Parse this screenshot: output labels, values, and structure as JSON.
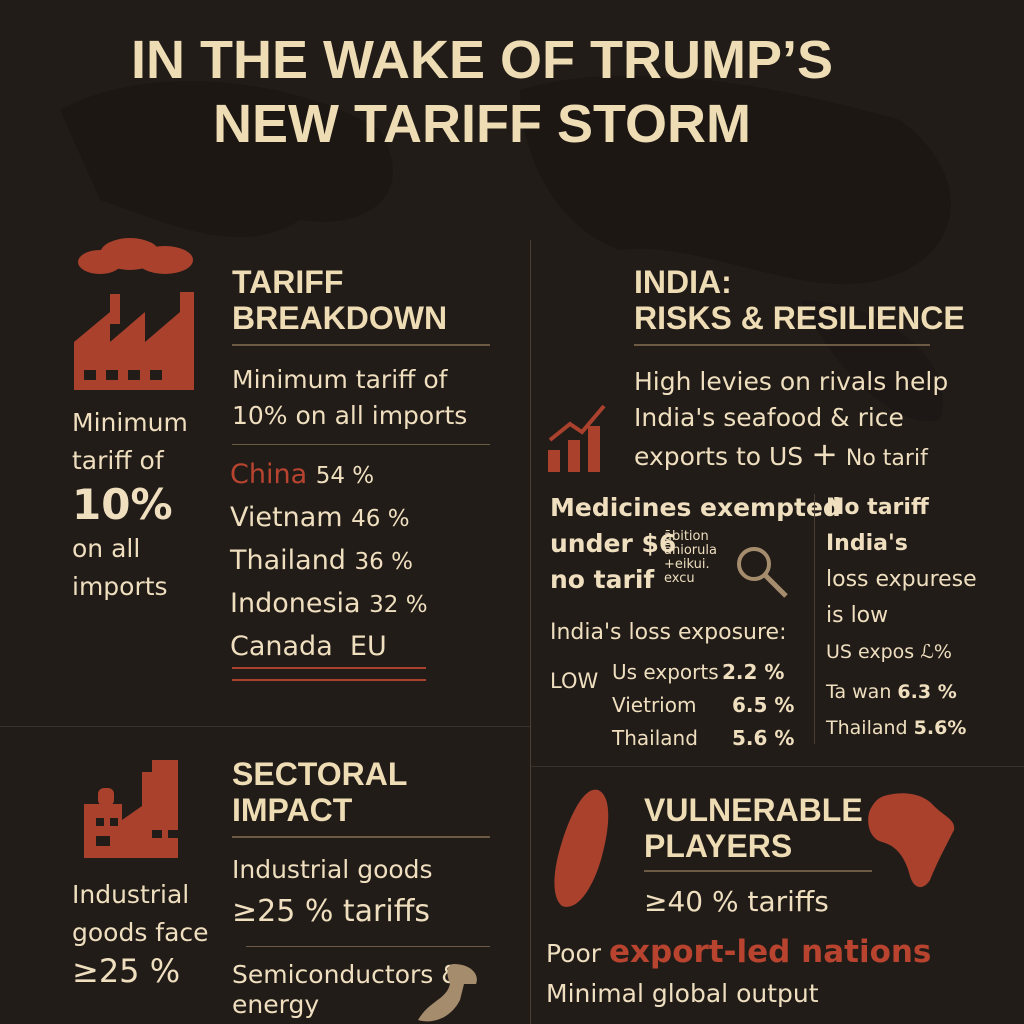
{
  "title": {
    "line1": "IN THE WAKE OF TRUMP’S",
    "line2": "NEW TARIFF STORM"
  },
  "colors": {
    "background": "#221c19",
    "text": "#efdfbf",
    "accent": "#b8442f"
  },
  "tariff": {
    "heading1": "TARIFF",
    "heading2": "BREAKDOWN",
    "side1": "Minimum",
    "side2": "tariff of",
    "side_big": "10%",
    "side3": "on all",
    "side4": "imports",
    "lead1": "Minimum tariff of",
    "lead2": "10% on all imports",
    "rows": [
      {
        "country": "China",
        "value": "54 %"
      },
      {
        "country": "Vietnam",
        "value": "46 %"
      },
      {
        "country": "Thailand",
        "value": "36 %"
      },
      {
        "country": "Indonesia",
        "value": "32 %"
      },
      {
        "country": "Canada",
        "value": "EU"
      }
    ]
  },
  "india": {
    "heading1": "INDIA:",
    "heading2": "RISKS & RESILIENCE",
    "lead1": "High levies on rivals help",
    "lead2": "India's seafood & rice",
    "lead3": "exports to US",
    "plus": "+",
    "lead4": "No tarif",
    "med1": "Medicines exempted",
    "med2": "under $6",
    "med3": "no tarif",
    "small1": "ābition",
    "small2": "āniorula",
    "small3": "+eikui.",
    "small4": "excu",
    "loss_label": "India's loss exposure:",
    "low": "LOW",
    "loss_rows": [
      {
        "label": "Us exports",
        "value": "2.2 %"
      },
      {
        "label": "Vietriom",
        "value": "6.5 %"
      },
      {
        "label": "Thailand",
        "value": "5.6 %"
      }
    ],
    "right1": "No tariff",
    "right2": "India's",
    "right3": "loss expurese",
    "right4": "is low",
    "right5": "US expos ℒ%",
    "right_rows": [
      {
        "label": "Ta wan",
        "value": "6.3 %"
      },
      {
        "label": "Thailand",
        "value": "5.6%"
      }
    ]
  },
  "sectoral": {
    "heading1": "SECTORAL",
    "heading2": "IMPACT",
    "side1": "Industrial",
    "side2": "goods face",
    "side3": "≥25 %",
    "lead1": "Industrial goods",
    "lead2": "≥25 % tariffs",
    "lead3": "Semiconductors &",
    "lead4": "energy"
  },
  "vulnerable": {
    "heading1": "VULNERABLE",
    "heading2": "PLAYERS",
    "lead1": "≥40 % tariffs",
    "poor": "Poor",
    "nations": "export-led nations",
    "minimal": "Minimal global output"
  }
}
